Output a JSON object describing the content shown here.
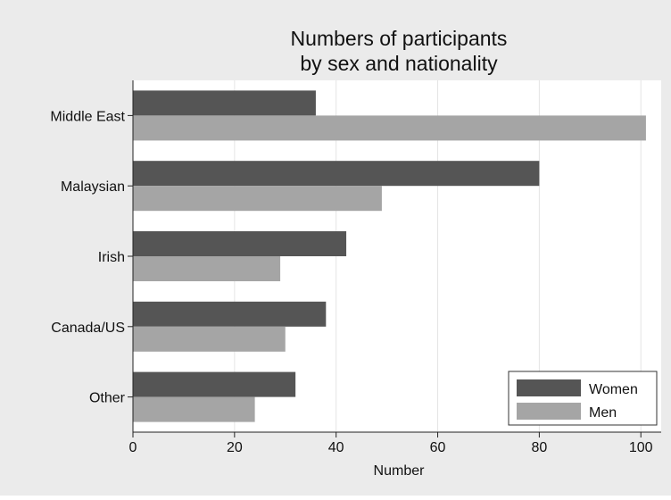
{
  "chart_data": {
    "type": "bar",
    "orientation": "horizontal",
    "title": "Numbers of participants",
    "subtitle": "by sex and nationality",
    "xlabel": "Number",
    "ylabel": "",
    "xlim": [
      0,
      104
    ],
    "xticks": [
      0,
      20,
      40,
      60,
      80,
      100
    ],
    "grid": true,
    "legend_position": "bottom-right",
    "categories": [
      "Middle East",
      "Malaysian",
      "Irish",
      "Canada/US",
      "Other"
    ],
    "series": [
      {
        "name": "Women",
        "color": "#555555",
        "values": [
          36,
          80,
          42,
          38,
          32
        ]
      },
      {
        "name": "Men",
        "color": "#a5a5a5",
        "values": [
          101,
          49,
          29,
          30,
          24
        ]
      }
    ]
  }
}
